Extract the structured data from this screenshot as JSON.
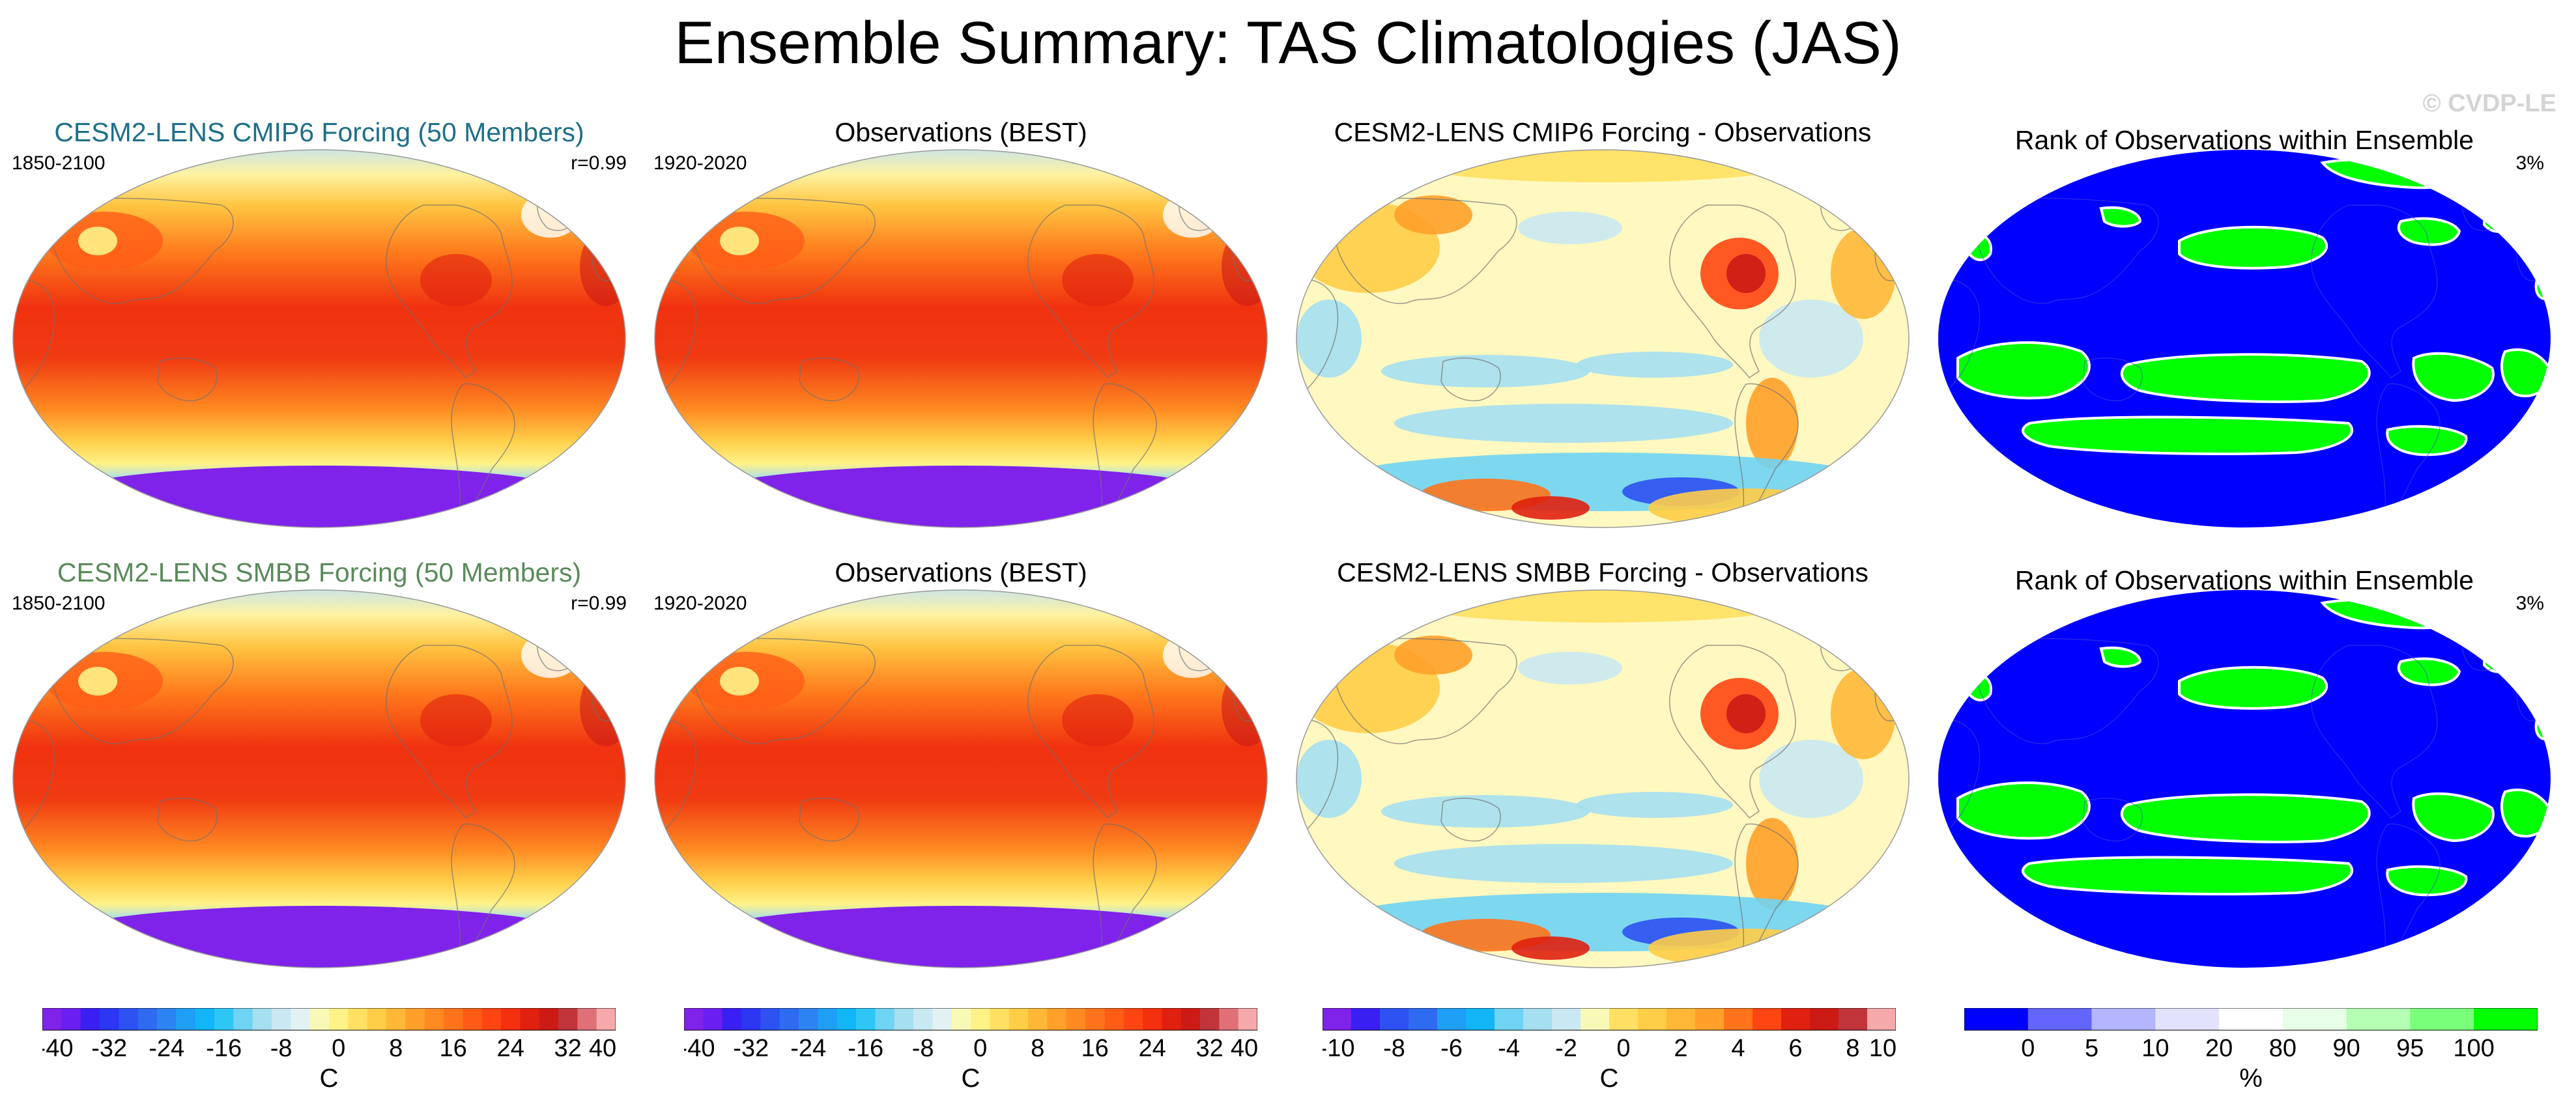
{
  "title": "Ensemble Summary: TAS Climatologies (JAS)",
  "watermark": "© CVDP-LE",
  "colors": {
    "cmip6_title": "#1f6f88",
    "smbb_title": "#5a8a5a",
    "rank_low": "#0000ff",
    "rank_high": "#00ff00"
  },
  "panels": [
    {
      "title": "CESM2-LENS CMIP6 Forcing (50 Members)",
      "left": "1850-2100",
      "right": "r=0.99",
      "kind": "clim",
      "title_color": "#1f6f88"
    },
    {
      "title": "Observations (BEST)",
      "left": "1920-2020",
      "right": "",
      "kind": "clim",
      "title_color": "#000000"
    },
    {
      "title": "CESM2-LENS CMIP6 Forcing - Observations",
      "left": "",
      "right": "",
      "kind": "diff",
      "title_color": "#000000"
    },
    {
      "title": "Rank of Observations within Ensemble",
      "left": "",
      "right": "3%",
      "kind": "rank",
      "title_color": "#000000"
    },
    {
      "title": "CESM2-LENS SMBB Forcing (50 Members)",
      "left": "1850-2100",
      "right": "r=0.99",
      "kind": "clim",
      "title_color": "#5a8a5a"
    },
    {
      "title": "Observations (BEST)",
      "left": "1920-2020",
      "right": "",
      "kind": "clim",
      "title_color": "#000000"
    },
    {
      "title": "CESM2-LENS SMBB Forcing - Observations",
      "left": "",
      "right": "",
      "kind": "diff",
      "title_color": "#000000"
    },
    {
      "title": "Rank of Observations within Ensemble",
      "left": "",
      "right": "3%",
      "kind": "rank",
      "title_color": "#000000"
    }
  ],
  "colorbars": [
    {
      "unit": "C",
      "ticks": [
        "-40",
        "-32",
        "-24",
        "-16",
        "-8",
        "0",
        "8",
        "16",
        "24",
        "32",
        "40"
      ],
      "colors": [
        "#7f22ea",
        "#6a1ff0",
        "#3a1ff2",
        "#2b37f3",
        "#2d52f1",
        "#2e6bf0",
        "#2d83f2",
        "#1f9ef5",
        "#12b5f5",
        "#2ec7f5",
        "#6fd3f4",
        "#a5dff1",
        "#c9e8f2",
        "#e2f2f4",
        "#f9f9b7",
        "#fff287",
        "#ffe062",
        "#ffcd48",
        "#ffb737",
        "#ffa02a",
        "#ff8a22",
        "#ff741b",
        "#ff5d16",
        "#ff4612",
        "#f5300f",
        "#e0210f",
        "#cc1b15",
        "#c0343a",
        "#e07077",
        "#f5a9ab"
      ]
    },
    {
      "unit": "C",
      "ticks": [
        "-40",
        "-32",
        "-24",
        "-16",
        "-8",
        "0",
        "8",
        "16",
        "24",
        "32",
        "40"
      ],
      "colors": [
        "#7f22ea",
        "#6a1ff0",
        "#3a1ff2",
        "#2b37f3",
        "#2d52f1",
        "#2e6bf0",
        "#2d83f2",
        "#1f9ef5",
        "#12b5f5",
        "#2ec7f5",
        "#6fd3f4",
        "#a5dff1",
        "#c9e8f2",
        "#e2f2f4",
        "#f9f9b7",
        "#fff287",
        "#ffe062",
        "#ffcd48",
        "#ffb737",
        "#ffa02a",
        "#ff8a22",
        "#ff741b",
        "#ff5d16",
        "#ff4612",
        "#f5300f",
        "#e0210f",
        "#cc1b15",
        "#c0343a",
        "#e07077",
        "#f5a9ab"
      ]
    },
    {
      "unit": "C",
      "ticks": [
        "-10",
        "-8",
        "-6",
        "-4",
        "-2",
        "0",
        "2",
        "4",
        "6",
        "8",
        "10"
      ],
      "colors": [
        "#7f22ea",
        "#3a1ff2",
        "#2d52f1",
        "#2e6bf0",
        "#1f9ef5",
        "#12b5f5",
        "#6fd3f4",
        "#a5dff1",
        "#c9e8f2",
        "#f9f9b7",
        "#ffe062",
        "#ffcd48",
        "#ffb737",
        "#ffa02a",
        "#ff741b",
        "#ff4612",
        "#e0210f",
        "#cc1b15",
        "#c0343a",
        "#f5a9ab"
      ]
    },
    {
      "unit": "%",
      "ticks": [
        "0",
        "5",
        "10",
        "20",
        "80",
        "90",
        "95",
        "100"
      ],
      "colors": [
        "#0000ff",
        "#6464ff",
        "#b4b4ff",
        "#e2e2fb",
        "#ffffff",
        "#e6ffe6",
        "#b4ffb4",
        "#7aff7a",
        "#00ff00"
      ]
    }
  ]
}
